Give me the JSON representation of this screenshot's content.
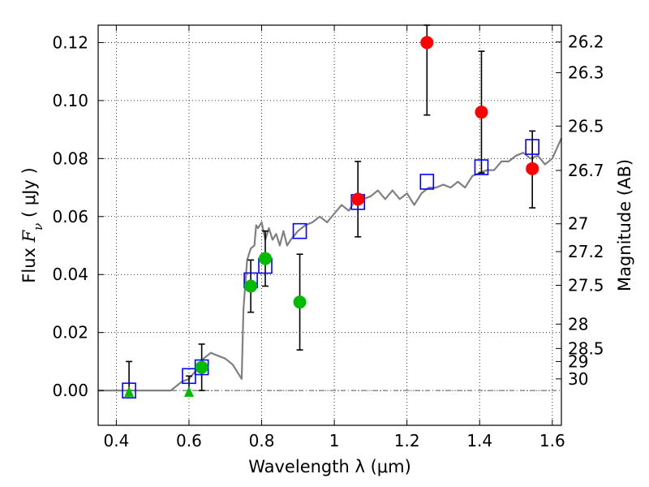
{
  "chart_data": {
    "type": "scatter",
    "xlabel": "Wavelength  λ (μm)",
    "ylabel": "Flux  F_ν  ( μJy )",
    "ylabel_right": "Magnitude (AB)",
    "xlim": [
      0.35,
      1.625
    ],
    "ylim": [
      -0.012,
      0.126
    ],
    "x_ticks": [
      0.4,
      0.6,
      0.8,
      1.0,
      1.2,
      1.4,
      1.6
    ],
    "x_tick_labels": [
      "0.4",
      "0.6",
      "0.8",
      "1",
      "1.2",
      "1.4",
      "1.6"
    ],
    "y_ticks": [
      0.0,
      0.02,
      0.04,
      0.06,
      0.08,
      0.1,
      0.12
    ],
    "y_tick_labels": [
      "0.00",
      "0.02",
      "0.04",
      "0.06",
      "0.08",
      "0.10",
      "0.12"
    ],
    "right_ticks": [
      {
        "label": "26.2",
        "flux": 0.1202
      },
      {
        "label": "26.3",
        "flux": 0.1096
      },
      {
        "label": "26.5",
        "flux": 0.0912
      },
      {
        "label": "26.7",
        "flux": 0.0759
      },
      {
        "label": "27",
        "flux": 0.0575
      },
      {
        "label": "27.2",
        "flux": 0.0479
      },
      {
        "label": "27.5",
        "flux": 0.0363
      },
      {
        "label": "28",
        "flux": 0.0229
      },
      {
        "label": "28.5",
        "flux": 0.0145
      },
      {
        "label": "29",
        "flux": 0.01
      },
      {
        "label": "30",
        "flux": 0.004
      }
    ],
    "grid": true,
    "grid_style": "dotted",
    "colors": {
      "model": "#808080",
      "model_photometry": "#0000ff",
      "detection_green": "#00bb00",
      "detection_red": "#ff0000",
      "errorbar": "#000000"
    },
    "series": [
      {
        "kind": "line",
        "points": [
          [
            0.35,
            0
          ],
          [
            0.45,
            0
          ],
          [
            0.55,
            0
          ],
          [
            0.58,
            0.003
          ],
          [
            0.6,
            0.004
          ],
          [
            0.62,
            0.007
          ],
          [
            0.64,
            0.011
          ],
          [
            0.66,
            0.013
          ],
          [
            0.68,
            0.012
          ],
          [
            0.7,
            0.011
          ],
          [
            0.72,
            0.009
          ],
          [
            0.735,
            0.006
          ],
          [
            0.745,
            0.004
          ],
          [
            0.75,
            0.028
          ],
          [
            0.76,
            0.045
          ],
          [
            0.77,
            0.049
          ],
          [
            0.78,
            0.05
          ],
          [
            0.785,
            0.057
          ],
          [
            0.79,
            0.056
          ],
          [
            0.8,
            0.058
          ],
          [
            0.81,
            0.052
          ],
          [
            0.82,
            0.056
          ],
          [
            0.83,
            0.052
          ],
          [
            0.84,
            0.054
          ],
          [
            0.85,
            0.05
          ],
          [
            0.86,
            0.055
          ],
          [
            0.87,
            0.05
          ],
          [
            0.88,
            0.052
          ],
          [
            0.9,
            0.055
          ],
          [
            0.92,
            0.057
          ],
          [
            0.94,
            0.058
          ],
          [
            0.96,
            0.06
          ],
          [
            0.98,
            0.058
          ],
          [
            1.0,
            0.061
          ],
          [
            1.02,
            0.064
          ],
          [
            1.04,
            0.062
          ],
          [
            1.06,
            0.066
          ],
          [
            1.08,
            0.066
          ],
          [
            1.1,
            0.067
          ],
          [
            1.12,
            0.069
          ],
          [
            1.14,
            0.066
          ],
          [
            1.16,
            0.069
          ],
          [
            1.18,
            0.066
          ],
          [
            1.2,
            0.068
          ],
          [
            1.22,
            0.064
          ],
          [
            1.24,
            0.068
          ],
          [
            1.26,
            0.07
          ],
          [
            1.28,
            0.07
          ],
          [
            1.3,
            0.071
          ],
          [
            1.32,
            0.07
          ],
          [
            1.34,
            0.072
          ],
          [
            1.36,
            0.07
          ],
          [
            1.38,
            0.074
          ],
          [
            1.4,
            0.075
          ],
          [
            1.42,
            0.076
          ],
          [
            1.44,
            0.076
          ],
          [
            1.46,
            0.079
          ],
          [
            1.48,
            0.079
          ],
          [
            1.5,
            0.081
          ],
          [
            1.52,
            0.082
          ],
          [
            1.54,
            0.08
          ],
          [
            1.56,
            0.081
          ],
          [
            1.58,
            0.078
          ],
          [
            1.6,
            0.08
          ],
          [
            1.625,
            0.087
          ]
        ]
      },
      {
        "kind": "open_square",
        "points": [
          [
            0.435,
            0.0
          ],
          [
            0.6,
            0.005
          ],
          [
            0.635,
            0.008
          ],
          [
            0.77,
            0.038
          ],
          [
            0.81,
            0.043
          ],
          [
            0.905,
            0.055
          ],
          [
            1.065,
            0.065
          ],
          [
            1.255,
            0.072
          ],
          [
            1.405,
            0.077
          ],
          [
            1.545,
            0.084
          ]
        ]
      },
      {
        "kind": "green_circle",
        "points": [
          [
            0.635,
            0.008,
            0.0,
            0.016
          ],
          [
            0.77,
            0.036,
            0.027,
            0.045
          ],
          [
            0.81,
            0.0455,
            0.036,
            0.055
          ],
          [
            0.905,
            0.0305,
            0.014,
            0.047
          ]
        ]
      },
      {
        "kind": "red_circle",
        "points": [
          [
            1.065,
            0.066,
            0.053,
            0.079
          ],
          [
            1.255,
            0.12,
            0.095,
            0.126
          ],
          [
            1.405,
            0.096,
            0.075,
            0.117
          ],
          [
            1.545,
            0.0765,
            0.063,
            0.0895
          ]
        ]
      },
      {
        "kind": "green_triangle",
        "points": [
          [
            0.435,
            -0.0005,
            null,
            0.01
          ],
          [
            0.6,
            -0.0005,
            null,
            0.005
          ]
        ]
      }
    ]
  }
}
